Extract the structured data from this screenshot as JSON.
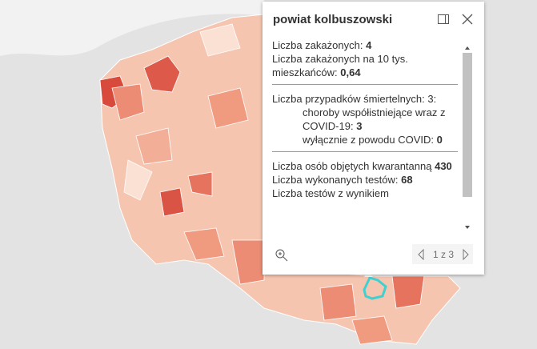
{
  "popup": {
    "title": "powiat kolbuszowski",
    "sections": [
      [
        {
          "label": "Liczba zakażonych:",
          "value": "4"
        },
        {
          "label": "Liczba zakażonych na 10 tys. mieszkańców:",
          "value": "0,64"
        }
      ],
      [
        {
          "label": "Liczba przypadków śmiertelnych: 3:"
        },
        {
          "label": "choroby współistniejące wraz z COVID-19:",
          "value": "3",
          "indent": true
        },
        {
          "label": "wyłącznie z powodu COVID:",
          "value": "0",
          "indent": true
        }
      ],
      [
        {
          "label": "Liczba osób objętych kwarantanną",
          "value": "430"
        },
        {
          "label": "Liczba wykonanych testów:",
          "value": "68"
        },
        {
          "label": "Liczba testów z wynikiem"
        }
      ]
    ],
    "pager": "1 z 3"
  }
}
